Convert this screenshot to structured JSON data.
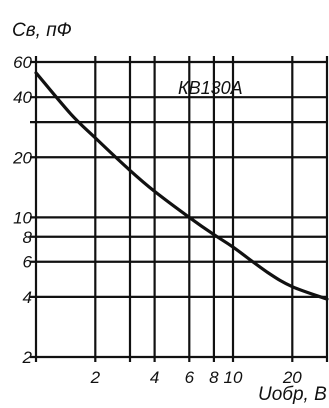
{
  "chart_data": {
    "type": "line",
    "ylabel": "Cв, пФ",
    "xlabel": "Uобр, В",
    "x_scale": "log",
    "y_scale": "log",
    "xlim": [
      1,
      30
    ],
    "ylim": [
      2,
      60
    ],
    "grid": true,
    "x_ticks": [
      1,
      2,
      3,
      4,
      6,
      8,
      10,
      20,
      30
    ],
    "x_tick_labels": [
      "",
      "2",
      "",
      "4",
      "6",
      "8",
      "10",
      "20",
      ""
    ],
    "y_ticks": [
      2,
      4,
      6,
      8,
      10,
      20,
      30,
      40,
      60
    ],
    "y_tick_labels": [
      "2",
      "4",
      "6",
      "8",
      "10",
      "20",
      "",
      "40",
      "60"
    ],
    "series": [
      {
        "name": "КВ130А",
        "x": [
          1,
          1.5,
          2,
          3,
          4,
          6,
          8,
          10,
          15,
          20,
          30
        ],
        "y": [
          53,
          33,
          25,
          17.2,
          13.5,
          10,
          8.2,
          7.1,
          5.3,
          4.5,
          3.9
        ]
      }
    ]
  }
}
